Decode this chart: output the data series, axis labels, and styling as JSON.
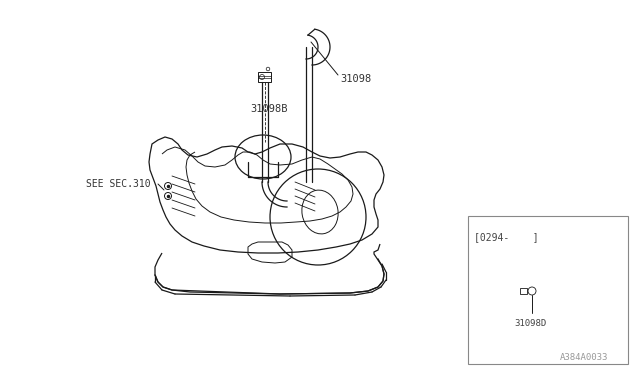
{
  "bg_color": "#ffffff",
  "line_color": "#1a1a1a",
  "fig_width": 6.4,
  "fig_height": 3.72,
  "dpi": 100,
  "title_code": "A384A0033",
  "part_31098_label": "31098",
  "part_31098B_label": "31098B",
  "part_31098D_label": "31098D",
  "see_sec_label": "SEE SEC.310",
  "inset_label": "[0294-    ]",
  "text_color": "#333333",
  "line_width": 0.9
}
